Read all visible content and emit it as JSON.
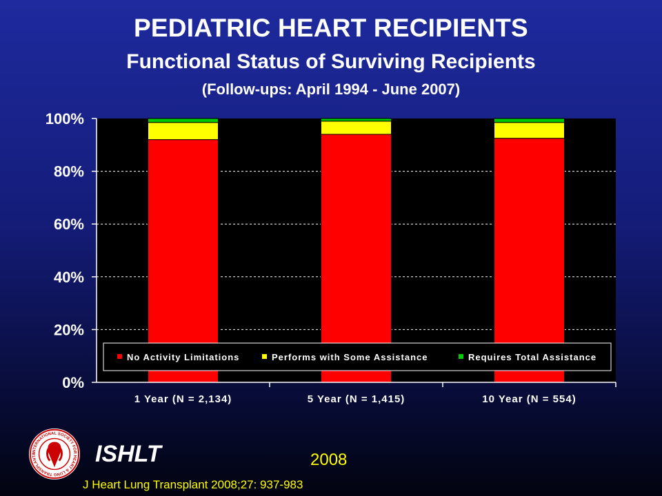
{
  "header": {
    "title": "PEDIATRIC HEART RECIPIENTS",
    "subtitle": "Functional Status of Surviving Recipients",
    "subtitle2": "(Follow-ups: April 1994 - June 2007)"
  },
  "chart_data": {
    "type": "bar",
    "stacked": true,
    "categories": [
      "1 Year (N = 2,134)",
      "5 Year (N = 1,415)",
      "10 Year (N = 554)"
    ],
    "series": [
      {
        "name": "No Activity Limitations",
        "color": "#ff0000",
        "values": [
          92,
          94,
          92.5
        ]
      },
      {
        "name": "Performs with Some Assistance",
        "color": "#ffff00",
        "values": [
          6.5,
          5,
          6
        ]
      },
      {
        "name": "Requires Total Assistance",
        "color": "#00cc00",
        "values": [
          1.5,
          1,
          1.5
        ]
      }
    ],
    "ylim": [
      0,
      100
    ],
    "yticks": [
      "0%",
      "20%",
      "40%",
      "60%",
      "80%",
      "100%"
    ],
    "grid": true,
    "legend": "bottom-inside"
  },
  "footer": {
    "logo_text": "INTERNATIONAL SOCIETY FOR HEART & LUNG TRANSPLANTATION",
    "org": "ISHLT",
    "year": "2008",
    "citation": "J Heart Lung Transplant 2008;27: 937-983"
  }
}
